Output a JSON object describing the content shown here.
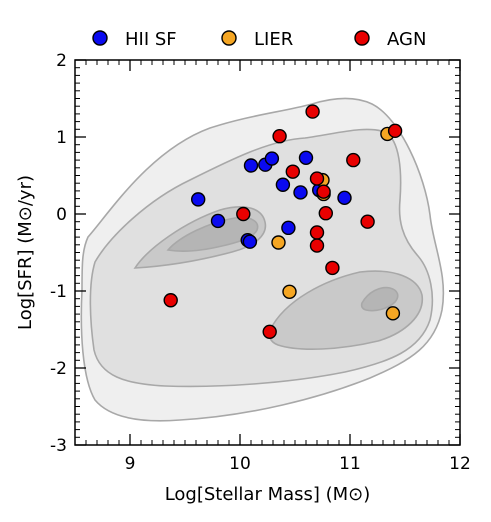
{
  "chart_data": {
    "type": "scatter",
    "xlabel": "Log[Stellar Mass] (M⊙)",
    "ylabel": "Log[SFR] (M⊙/yr)",
    "xlim": [
      8.5,
      12
    ],
    "ylim": [
      -3,
      2
    ],
    "xticks": [
      9,
      10,
      11,
      12
    ],
    "xtick_labels": [
      "9",
      "10",
      "11",
      "12"
    ],
    "yticks": [
      2,
      1,
      0,
      -1,
      -2,
      -3
    ],
    "ytick_labels": [
      "2",
      "1",
      "0",
      "-1",
      "-2",
      "-3"
    ],
    "grid": false,
    "legend_position": "top",
    "contour_colors": [
      "#efefef",
      "#e0e0e0",
      "#c9c9c9",
      "#b5b5b5"
    ],
    "series": [
      {
        "name": "HII SF",
        "color": "#0a0af0",
        "points": [
          {
            "x": 9.62,
            "y": 0.19
          },
          {
            "x": 9.8,
            "y": -0.09
          },
          {
            "x": 10.07,
            "y": -0.34
          },
          {
            "x": 10.09,
            "y": -0.36
          },
          {
            "x": 10.1,
            "y": 0.63
          },
          {
            "x": 10.23,
            "y": 0.64
          },
          {
            "x": 10.29,
            "y": 0.72
          },
          {
            "x": 10.39,
            "y": 0.38
          },
          {
            "x": 10.44,
            "y": -0.18
          },
          {
            "x": 10.55,
            "y": 0.28
          },
          {
            "x": 10.6,
            "y": 0.73
          },
          {
            "x": 10.72,
            "y": 0.31
          },
          {
            "x": 10.95,
            "y": 0.21
          }
        ]
      },
      {
        "name": "LIER",
        "color": "#f5a623",
        "points": [
          {
            "x": 10.35,
            "y": -0.37
          },
          {
            "x": 10.45,
            "y": -1.01
          },
          {
            "x": 10.75,
            "y": 0.44
          },
          {
            "x": 10.76,
            "y": 0.26
          },
          {
            "x": 11.34,
            "y": 1.04
          },
          {
            "x": 11.39,
            "y": -1.29
          }
        ]
      },
      {
        "name": "AGN",
        "color": "#e80000",
        "points": [
          {
            "x": 9.37,
            "y": -1.12
          },
          {
            "x": 10.03,
            "y": 0.0
          },
          {
            "x": 10.27,
            "y": -1.53
          },
          {
            "x": 10.36,
            "y": 1.01
          },
          {
            "x": 10.48,
            "y": 0.55
          },
          {
            "x": 10.66,
            "y": 1.33
          },
          {
            "x": 10.7,
            "y": 0.46
          },
          {
            "x": 10.7,
            "y": -0.24
          },
          {
            "x": 10.7,
            "y": -0.41
          },
          {
            "x": 10.76,
            "y": 0.29
          },
          {
            "x": 10.78,
            "y": 0.01
          },
          {
            "x": 10.84,
            "y": -0.7
          },
          {
            "x": 11.03,
            "y": 0.7
          },
          {
            "x": 11.16,
            "y": -0.1
          },
          {
            "x": 11.41,
            "y": 1.08
          }
        ]
      }
    ]
  }
}
